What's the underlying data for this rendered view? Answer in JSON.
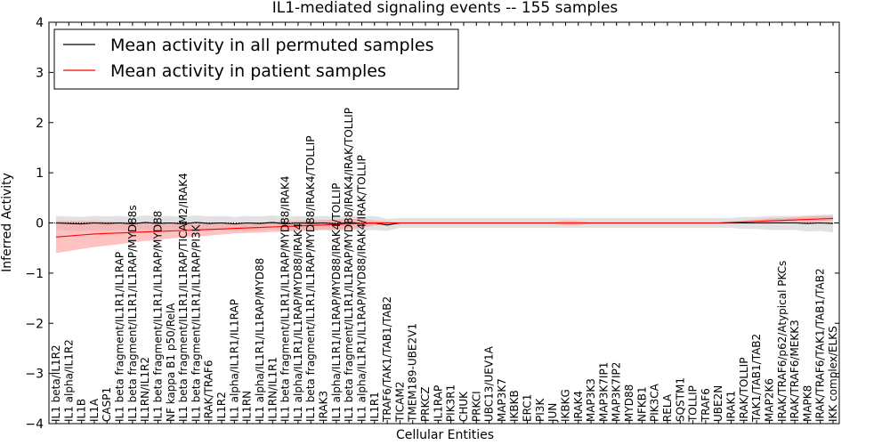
{
  "chart_data": {
    "type": "line",
    "title": "IL1-mediated signaling events -- 155 samples",
    "xlabel": "Cellular Entities",
    "ylabel": "Inferred Activity",
    "ylim": [
      -4,
      4
    ],
    "yticks": [
      "4",
      "3",
      "2",
      "1",
      "0",
      "−1",
      "−2",
      "−3",
      "−4"
    ],
    "legend": {
      "position": "top-left",
      "entries": [
        "Mean activity in all permuted samples",
        "Mean activity in patient samples"
      ]
    },
    "colors": {
      "permuted": "#000000",
      "patient": "#ff0000",
      "permuted_band": "#c8c8c8",
      "patient_band": "#ff9999"
    },
    "categories": [
      "IL1 beta/IL1R2",
      "IL1 alpha/IL1R2",
      "IL1B",
      "IL1A",
      "CASP1",
      "IL1 beta fragment/IL1R1/IL1RAP",
      "IL1 beta fragment/IL1R1/IL1RAP/MYD88s",
      "IL1RN/IL1R2",
      "IL1 beta fragment/IL1R1/IL1RAP/MYD88",
      "NF kappa B1 p50/RelA",
      "IL1 beta fragment/IL1R1/IL1RAP/TICAM2/IRAK4",
      "IL1 beta fragment/IL1R1/IL1RAP/PI3K",
      "IRAK/TRAF6",
      "IL1R2",
      "IL1 alpha/IL1R1/IL1RAP",
      "IL1RN",
      "IL1 alpha/IL1R1/IL1RAP/MYD88",
      "IL1RN/IL1R1",
      "IL1 beta fragment/IL1R1/IL1RAP/MYD88/IRAK4",
      "IL1 alpha/IL1R1/IL1RAP/MYD88/IRAK4",
      "IL1 beta fragment/IL1R1/IL1RAP/MYD88/IRAK4/TOLLIP",
      "IRAK3",
      "IL1 alpha/IL1R1/IL1RAP/MYD88/IRAK4/TOLLIP",
      "IL1 beta fragment/IL1R1/IL1RAP/MYD88/IRAK4/IRAK/TOLLIP",
      "IL1 alpha/IL1R1/IL1RAP/MYD88/IRAK4/IRAK/TOLLIP",
      "IL1R1",
      "TRAF6/TAK1/TAB1/TAB2",
      "TICAM2",
      "TMEM189-UBE2V1",
      "PRKCZ",
      "IL1RAP",
      "PIK3R1",
      "CHUK",
      "PRKCI",
      "UBC13/UEV1A",
      "MAP3K7",
      "IKBKB",
      "ERC1",
      "PI3K",
      "JUN",
      "IKBKG",
      "IRAK4",
      "MAP3K3",
      "MAP3K7IP1",
      "MAP3K7IP2",
      "MYD88",
      "NFKB1",
      "PIK3CA",
      "RELA",
      "SQSTM1",
      "TOLLIP",
      "TRAF6",
      "UBE2N",
      "IRAK1",
      "IRAK/TOLLIP",
      "TAK1/TAB1/TAB2",
      "MAP2K6",
      "IRAK/TRAF6/p62/Atypical PKCs",
      "IRAK/TRAF6/MEKK3",
      "MAPK8",
      "IRAK/TRAF6/TAK1/TAB1/TAB2",
      "IKK complex/ELKS"
    ],
    "series": [
      {
        "name": "Mean activity in all permuted samples",
        "values": [
          0.0,
          -0.01,
          -0.02,
          0.0,
          -0.01,
          0.0,
          -0.02,
          0.01,
          -0.01,
          0.0,
          -0.02,
          0.01,
          -0.01,
          0.0,
          -0.02,
          0.0,
          -0.01,
          0.01,
          -0.02,
          0.0,
          -0.01,
          0.0,
          -0.02,
          0.01,
          -0.01,
          0.0,
          -0.04,
          0.0,
          0.0,
          0.0,
          0.0,
          0.0,
          0.0,
          0.0,
          0.0,
          0.0,
          0.0,
          0.0,
          0.0,
          0.0,
          0.0,
          0.0,
          0.0,
          0.0,
          0.0,
          0.0,
          0.0,
          0.0,
          0.0,
          0.0,
          0.0,
          0.0,
          0.0,
          0.0,
          0.0,
          0.0,
          0.0,
          0.0,
          0.0,
          -0.01,
          0.0,
          -0.01
        ],
        "band": [
          0.14,
          0.14,
          0.14,
          0.14,
          0.14,
          0.14,
          0.14,
          0.14,
          0.14,
          0.14,
          0.14,
          0.14,
          0.14,
          0.14,
          0.14,
          0.14,
          0.14,
          0.14,
          0.14,
          0.14,
          0.14,
          0.14,
          0.14,
          0.14,
          0.14,
          0.14,
          0.12,
          0.1,
          0.1,
          0.1,
          0.1,
          0.1,
          0.1,
          0.1,
          0.1,
          0.1,
          0.1,
          0.1,
          0.1,
          0.1,
          0.1,
          0.1,
          0.1,
          0.1,
          0.1,
          0.1,
          0.1,
          0.1,
          0.1,
          0.1,
          0.1,
          0.1,
          0.1,
          0.1,
          0.12,
          0.12,
          0.14,
          0.14,
          0.14,
          0.16,
          0.16,
          0.18
        ]
      },
      {
        "name": "Mean activity in patient samples",
        "values": [
          -0.28,
          -0.26,
          -0.24,
          -0.22,
          -0.21,
          -0.2,
          -0.19,
          -0.18,
          -0.17,
          -0.16,
          -0.15,
          -0.14,
          -0.13,
          -0.12,
          -0.11,
          -0.1,
          -0.09,
          -0.08,
          -0.07,
          -0.06,
          -0.05,
          -0.04,
          -0.03,
          -0.02,
          -0.01,
          0.0,
          0.0,
          0.0,
          0.0,
          0.0,
          0.0,
          0.0,
          0.0,
          0.0,
          0.0,
          0.0,
          0.0,
          0.0,
          0.0,
          0.0,
          0.0,
          0.0,
          0.0,
          0.0,
          0.0,
          0.0,
          0.0,
          0.0,
          0.0,
          0.0,
          0.0,
          0.0,
          0.0,
          0.01,
          0.02,
          0.03,
          0.04,
          0.05,
          0.06,
          0.07,
          0.08,
          0.09
        ],
        "band": [
          0.32,
          0.3,
          0.28,
          0.26,
          0.24,
          0.22,
          0.2,
          0.18,
          0.16,
          0.15,
          0.14,
          0.13,
          0.12,
          0.11,
          0.1,
          0.1,
          0.1,
          0.1,
          0.1,
          0.1,
          0.1,
          0.1,
          0.1,
          0.1,
          0.09,
          0.05,
          0.03,
          0.02,
          0.02,
          0.02,
          0.02,
          0.02,
          0.02,
          0.02,
          0.02,
          0.02,
          0.02,
          0.02,
          0.02,
          0.02,
          0.05,
          0.04,
          0.02,
          0.02,
          0.02,
          0.02,
          0.02,
          0.02,
          0.02,
          0.02,
          0.02,
          0.02,
          0.02,
          0.02,
          0.03,
          0.04,
          0.05,
          0.05,
          0.05,
          0.06,
          0.06,
          0.05
        ]
      }
    ]
  }
}
